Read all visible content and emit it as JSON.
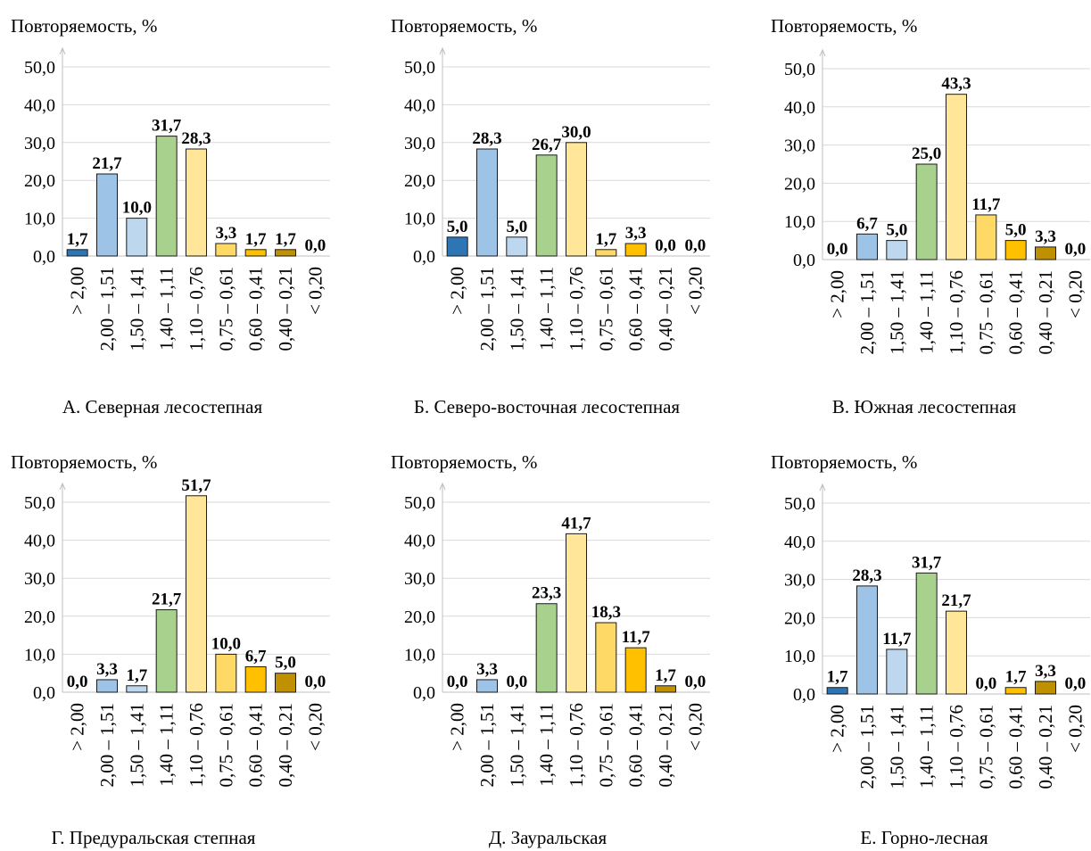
{
  "chart_data": [
    {
      "type": "bar",
      "title": "А. Северная лесостепная",
      "ylabel": "Повторяемость, %",
      "ylim": [
        0,
        50
      ],
      "yticks": [
        "0,0",
        "10,0",
        "20,0",
        "30,0",
        "40,0",
        "50,0"
      ],
      "categories": [
        "> 2,00",
        "2,00 – 1,51",
        "1,50 – 1,41",
        "1,40 – 1,11",
        "1,10 – 0,76",
        "0,75 – 0,61",
        "0,60 – 0,41",
        "0,40 – 0,21",
        "< 0,20"
      ],
      "values": [
        1.7,
        21.7,
        10.0,
        31.7,
        28.3,
        3.3,
        1.7,
        1.7,
        0.0
      ],
      "value_labels": [
        "1,7",
        "21,7",
        "10,0",
        "31,7",
        "28,3",
        "3,3",
        "1,7",
        "1,7",
        "0,0"
      ],
      "grid": true
    },
    {
      "type": "bar",
      "title": "Б. Северо-восточная лесостепная",
      "ylabel": "Повторяемость, %",
      "ylim": [
        0,
        50
      ],
      "yticks": [
        "0,0",
        "10,0",
        "20,0",
        "30,0",
        "40,0",
        "50,0"
      ],
      "categories": [
        "> 2,00",
        "2,00 – 1,51",
        "1,50 – 1,41",
        "1,40 – 1,11",
        "1,10 – 0,76",
        "0,75 – 0,61",
        "0,60 – 0,41",
        "0,40 – 0,21",
        "< 0,20"
      ],
      "values": [
        5.0,
        28.3,
        5.0,
        26.7,
        30.0,
        1.7,
        3.3,
        0.0,
        0.0
      ],
      "value_labels": [
        "5,0",
        "28,3",
        "5,0",
        "26,7",
        "30,0",
        "1,7",
        "3,3",
        "0,0",
        "0,0"
      ],
      "grid": true
    },
    {
      "type": "bar",
      "title": "В. Южная лесостепная",
      "ylabel": "Повторяемость, %",
      "ylim": [
        0,
        50
      ],
      "yticks": [
        "0,0",
        "10,0",
        "20,0",
        "30,0",
        "40,0",
        "50,0"
      ],
      "categories": [
        "> 2,00",
        "2,00 – 1,51",
        "1,50 – 1,41",
        "1,40 – 1,11",
        "1,10 – 0,76",
        "0,75 – 0,61",
        "0,60 – 0,41",
        "0,40 – 0,21",
        "< 0,20"
      ],
      "values": [
        0.0,
        6.7,
        5.0,
        25.0,
        43.3,
        11.7,
        5.0,
        3.3,
        0.0
      ],
      "value_labels": [
        "0,0",
        "6,7",
        "5,0",
        "25,0",
        "43,3",
        "11,7",
        "5,0",
        "3,3",
        "0,0"
      ],
      "grid": true
    },
    {
      "type": "bar",
      "title": "Г. Предуральская степная",
      "ylabel": "Повторяемость, %",
      "ylim": [
        0,
        50
      ],
      "yticks": [
        "0,0",
        "10,0",
        "20,0",
        "30,0",
        "40,0",
        "50,0"
      ],
      "categories": [
        "> 2,00",
        "2,00 – 1,51",
        "1,50 – 1,41",
        "1,40 – 1,11",
        "1,10 – 0,76",
        "0,75 – 0,61",
        "0,60 – 0,41",
        "0,40 – 0,21",
        "< 0,20"
      ],
      "values": [
        0.0,
        3.3,
        1.7,
        21.7,
        51.7,
        10.0,
        6.7,
        5.0,
        0.0
      ],
      "value_labels": [
        "0,0",
        "3,3",
        "1,7",
        "21,7",
        "51,7",
        "10,0",
        "6,7",
        "5,0",
        "0,0"
      ],
      "grid": true
    },
    {
      "type": "bar",
      "title": "Д. Зауральская",
      "ylabel": "Повторяемость, %",
      "ylim": [
        0,
        50
      ],
      "yticks": [
        "0,0",
        "10,0",
        "20,0",
        "30,0",
        "40,0",
        "50,0"
      ],
      "categories": [
        "> 2,00",
        "2,00 – 1,51",
        "1,50 – 1,41",
        "1,40 – 1,11",
        "1,10 – 0,76",
        "0,75 – 0,61",
        "0,60 – 0,41",
        "0,40 – 0,21",
        "< 0,20"
      ],
      "values": [
        0.0,
        3.3,
        0.0,
        23.3,
        41.7,
        18.3,
        11.7,
        1.7,
        0.0
      ],
      "value_labels": [
        "0,0",
        "3,3",
        "0,0",
        "23,3",
        "41,7",
        "18,3",
        "11,7",
        "1,7",
        "0,0"
      ],
      "grid": true
    },
    {
      "type": "bar",
      "title": "Е. Горно-лесная",
      "ylabel": "Повторяемость, %",
      "ylim": [
        0,
        50
      ],
      "yticks": [
        "0,0",
        "10,0",
        "20,0",
        "30,0",
        "40,0",
        "50,0"
      ],
      "categories": [
        "> 2,00",
        "2,00 – 1,51",
        "1,50 – 1,41",
        "1,40 – 1,11",
        "1,10 – 0,76",
        "0,75 – 0,61",
        "0,60 – 0,41",
        "0,40 – 0,21",
        "< 0,20"
      ],
      "values": [
        1.7,
        28.3,
        11.7,
        31.7,
        21.7,
        0.0,
        1.7,
        3.3,
        0.0
      ],
      "value_labels": [
        "1,7",
        "28,3",
        "11,7",
        "31,7",
        "21,7",
        "0,0",
        "1,7",
        "3,3",
        "0,0"
      ],
      "grid": true
    }
  ],
  "colors": {
    "category_fills": [
      "#2e75b6",
      "#9dc3e6",
      "#bdd7ee",
      "#a9d18e",
      "#ffe699",
      "#ffd966",
      "#ffc000",
      "#bf9000",
      "#bf9000"
    ],
    "grid": "#d9d9d9",
    "axis": "#bfbfbf"
  }
}
